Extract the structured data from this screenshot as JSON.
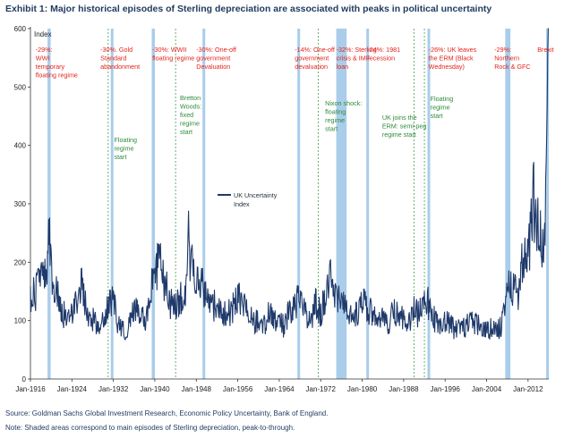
{
  "title": "Exhibit 1: Major historical episodes of Sterling depreciation are associated with peaks in political uncertainty",
  "source": "Source: Goldman Sachs Global Investment Research, Economic Policy Uncertainty, Bank of England.",
  "note": "Note: Shaded areas correspond to main episodes of Sterling depreciation, peak-to-through.",
  "colors": {
    "series": "#1f3a6b",
    "band": "#a9cdea",
    "red": "#e2231a",
    "green": "#2e8b3a"
  },
  "chart_data": {
    "type": "line",
    "ylabel": "Index",
    "ylim": [
      0,
      600
    ],
    "xlim": [
      1916,
      2016
    ],
    "y_ticks": [
      "0",
      "100",
      "200",
      "300",
      "400",
      "500",
      "600"
    ],
    "x_ticks": [
      "Jan-1916",
      "Jan-1924",
      "Jan-1932",
      "Jan-1940",
      "Jan-1948",
      "Jan-1956",
      "Jan-1964",
      "Jan-1972",
      "Jan-1980",
      "Jan-1988",
      "Jan-1996",
      "Jan-2004",
      "Jan-2012"
    ],
    "grid": false,
    "legend": "center",
    "series": [
      {
        "name": "UK Uncertainty Index",
        "x": [
          1916,
          1917,
          1918,
          1919,
          1919.5,
          1920,
          1921,
          1922,
          1923,
          1924,
          1925,
          1926,
          1927,
          1928,
          1929,
          1930,
          1931,
          1932,
          1933,
          1934,
          1935,
          1936,
          1937,
          1938,
          1939,
          1940,
          1941,
          1942,
          1943,
          1944,
          1945,
          1946,
          1946.5,
          1947,
          1948,
          1949,
          1950,
          1951,
          1952,
          1953,
          1954,
          1955,
          1956,
          1957,
          1958,
          1959,
          1960,
          1961,
          1962,
          1963,
          1964,
          1965,
          1966,
          1967,
          1968,
          1969,
          1970,
          1971,
          1972,
          1973,
          1974,
          1975,
          1976,
          1977,
          1978,
          1979,
          1980,
          1981,
          1982,
          1983,
          1984,
          1985,
          1986,
          1987,
          1988,
          1989,
          1990,
          1991,
          1992,
          1993,
          1994,
          1995,
          1996,
          1997,
          1998,
          1999,
          2000,
          2001,
          2002,
          2003,
          2004,
          2005,
          2006,
          2007,
          2008,
          2009,
          2010,
          2011,
          2012,
          2013,
          2014,
          2015,
          2015.5,
          2016
        ],
        "values": [
          140,
          150,
          200,
          170,
          265,
          180,
          150,
          120,
          100,
          115,
          130,
          170,
          110,
          100,
          95,
          100,
          120,
          145,
          90,
          80,
          90,
          120,
          105,
          100,
          130,
          190,
          200,
          160,
          130,
          120,
          140,
          160,
          240,
          200,
          180,
          160,
          140,
          120,
          130,
          120,
          110,
          120,
          145,
          130,
          110,
          95,
          100,
          90,
          110,
          100,
          95,
          90,
          120,
          130,
          140,
          110,
          100,
          130,
          110,
          150,
          170,
          130,
          145,
          120,
          105,
          115,
          130,
          120,
          110,
          95,
          100,
          95,
          120,
          110,
          105,
          100,
          120,
          110,
          140,
          125,
          100,
          95,
          100,
          95,
          85,
          95,
          90,
          100,
          95,
          85,
          80,
          90,
          80,
          95,
          150,
          160,
          145,
          210,
          200,
          310,
          250,
          220,
          340,
          600
        ]
      }
    ],
    "shaded_episodes": [
      {
        "start": 1919.3,
        "end": 1919.9
      },
      {
        "start": 1931.5,
        "end": 1931.8
      },
      {
        "start": 1939.4,
        "end": 1940.0
      },
      {
        "start": 1949.2,
        "end": 1949.6
      },
      {
        "start": 1967.5,
        "end": 1967.8
      },
      {
        "start": 1975.0,
        "end": 1977.0
      },
      {
        "start": 1980.8,
        "end": 1981.3
      },
      {
        "start": 1992.6,
        "end": 1993.0
      },
      {
        "start": 2007.6,
        "end": 2008.6
      },
      {
        "start": 2015.5,
        "end": 2015.8
      }
    ],
    "regime_lines": [
      1931.0,
      1944.0,
      1971.5,
      1990.0,
      1992.0
    ],
    "annotations_red": [
      {
        "x": 1917,
        "lines": [
          "-29%:",
          "WWI",
          "temporary",
          "floating regime"
        ]
      },
      {
        "x": 1929.5,
        "lines": [
          "-30%.  Gold",
          "Standard",
          "abandonment"
        ]
      },
      {
        "x": 1939.5,
        "lines": [
          "-30%: WWII",
          "floating regime"
        ]
      },
      {
        "x": 1948,
        "lines": [
          "-30%: One-off",
          "government",
          "Devaluation"
        ]
      },
      {
        "x": 1967.0,
        "lines": [
          "-14%: One-off",
          "government",
          "devaluation"
        ]
      },
      {
        "x": 1975.0,
        "lines": [
          "-32%: Sterling",
          "crisis & IMF",
          "loan"
        ]
      },
      {
        "x": 1981.0,
        "lines": [
          "-24%: 1981",
          "recession"
        ]
      },
      {
        "x": 1992.8,
        "lines": [
          "-26%: UK leaves",
          "the ERM (Black",
          "Wednesday)"
        ]
      },
      {
        "x": 2005.5,
        "lines": [
          "-29%:",
          "Northern",
          "Rock & GFC"
        ]
      },
      {
        "x": 2013.8,
        "lines": [
          "Brexit"
        ]
      }
    ],
    "annotations_green": [
      {
        "x": 1931.8,
        "lines": [
          "Floating",
          "regime",
          "start"
        ]
      },
      {
        "x": 1944.5,
        "lines": [
          "Bretton",
          "Woods:",
          "fixed",
          "regime",
          "start"
        ]
      },
      {
        "x": 1972.5,
        "lines": [
          "Nixon shock:",
          "floating",
          "regime",
          "start"
        ]
      },
      {
        "x": 1983.5,
        "lines": [
          "UK joins the",
          "ERM: semi-peg",
          "regime start"
        ]
      },
      {
        "x": 1992.8,
        "lines": [
          "Floating",
          "regime",
          "start"
        ]
      }
    ]
  }
}
